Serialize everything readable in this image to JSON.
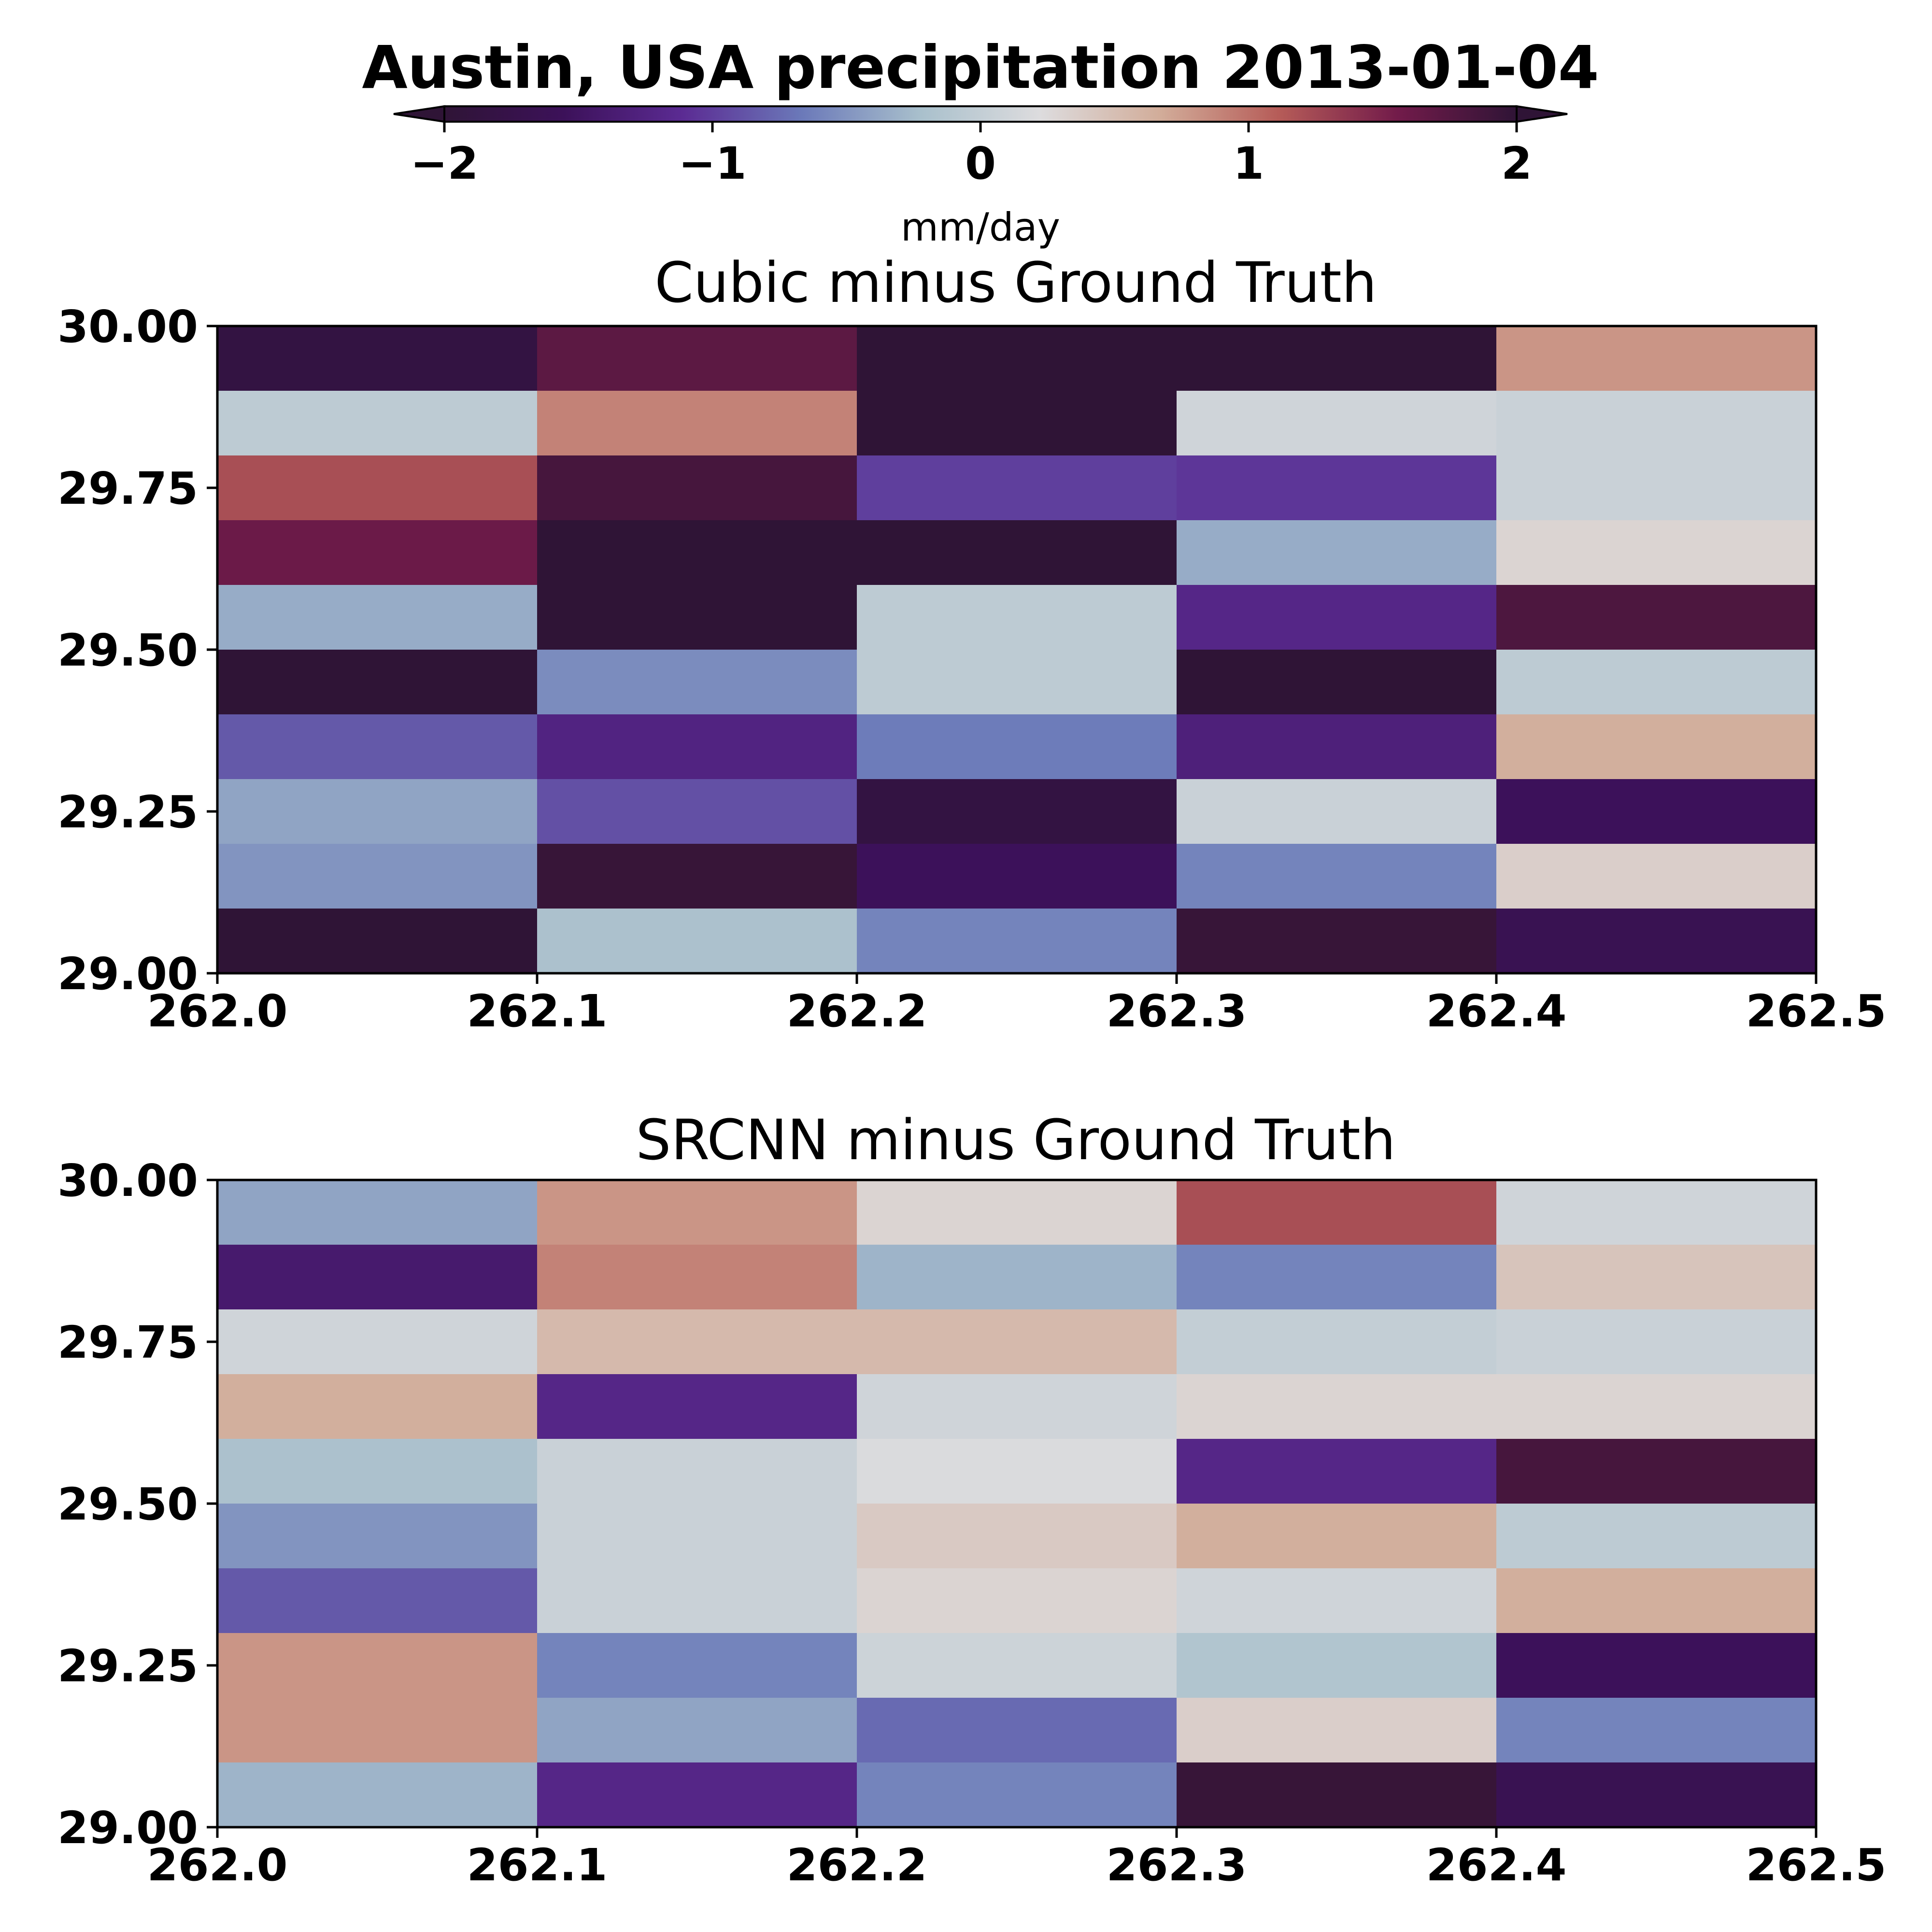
{
  "chart_data": {
    "type": "heatmap",
    "title": "Austin, USA precipitation 2013-01-04",
    "colorbar": {
      "label": "mm/day",
      "ticks": [
        "−2",
        "−1",
        "0",
        "1",
        "2"
      ],
      "vmin": -2,
      "vmax": 2,
      "extend": "both",
      "colormap": "twilight_shifted"
    },
    "colormap_stops": [
      "#2f1436",
      "#3c1159",
      "#5b2b93",
      "#6b79b9",
      "#a9c0cc",
      "#dddcde",
      "#d2ad9a",
      "#b65c58",
      "#721b4a",
      "#2f1436"
    ],
    "x": [
      262.0,
      262.1,
      262.2,
      262.3,
      262.4,
      262.5
    ],
    "y": [
      29.0,
      29.1,
      29.2,
      29.3,
      29.4,
      29.5,
      29.6,
      29.7,
      29.8,
      29.9,
      30.0
    ],
    "xticks": [
      "262.0",
      "262.1",
      "262.2",
      "262.3",
      "262.4",
      "262.5"
    ],
    "yticks": [
      "29.00",
      "29.25",
      "29.50",
      "29.75",
      "30.00"
    ],
    "panels": [
      {
        "title": "Cubic minus Ground Truth",
        "values_top_to_bottom": [
          [
            -1.85,
            1.7,
            2.0,
            2.0,
            0.8
          ],
          [
            -0.05,
            0.9,
            2.0,
            0.1,
            0.05
          ],
          [
            1.2,
            1.85,
            -1.0,
            -1.05,
            0.05
          ],
          [
            1.6,
            2.0,
            2.0,
            -0.35,
            0.3
          ],
          [
            -0.35,
            2.0,
            -0.05,
            -1.2,
            1.8
          ],
          [
            2.0,
            -0.55,
            -0.05,
            2.0,
            -0.05
          ],
          [
            -0.85,
            -1.25,
            -0.65,
            -1.3,
            0.65
          ],
          [
            -0.4,
            -0.9,
            -1.85,
            0.05,
            -1.55
          ],
          [
            -0.5,
            1.95,
            -1.55,
            -0.6,
            0.35
          ],
          [
            2.0,
            -0.2,
            -0.6,
            1.95,
            -1.65
          ]
        ]
      },
      {
        "title": "SRCNN minus Ground Truth",
        "values_top_to_bottom": [
          [
            -0.4,
            0.8,
            0.3,
            1.2,
            0.1
          ],
          [
            -1.4,
            0.9,
            -0.3,
            -0.6,
            0.45
          ],
          [
            0.1,
            0.55,
            0.55,
            0.0,
            0.05
          ],
          [
            0.65,
            -1.2,
            0.1,
            0.3,
            0.3
          ],
          [
            -0.2,
            0.05,
            0.2,
            -1.2,
            1.85
          ],
          [
            -0.5,
            0.05,
            0.4,
            0.65,
            -0.05
          ],
          [
            -0.85,
            0.05,
            0.3,
            0.1,
            0.65
          ],
          [
            0.8,
            -0.6,
            0.08,
            -0.15,
            -1.55
          ],
          [
            0.8,
            -0.4,
            -0.75,
            0.35,
            -0.6
          ],
          [
            -0.3,
            -1.2,
            -0.6,
            1.95,
            -1.65
          ]
        ]
      }
    ]
  }
}
